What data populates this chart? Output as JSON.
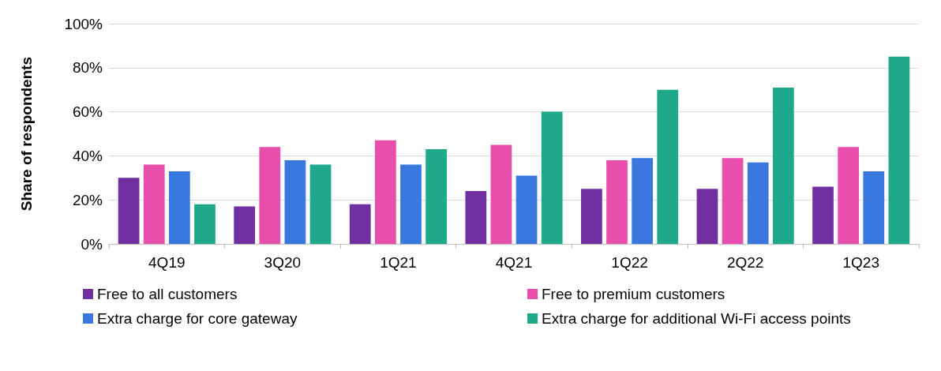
{
  "chart_data": {
    "type": "bar",
    "ylabel": "Share of respondents",
    "categories": [
      "4Q19",
      "3Q20",
      "1Q21",
      "4Q21",
      "1Q22",
      "2Q22",
      "1Q23"
    ],
    "series": [
      {
        "name": "Free to all customers",
        "color": "#7030a0",
        "values": [
          30,
          17,
          18,
          24,
          25,
          25,
          26
        ]
      },
      {
        "name": "Free to premium customers",
        "color": "#e84fad",
        "values": [
          36,
          44,
          47,
          45,
          38,
          39,
          44
        ]
      },
      {
        "name": "Extra charge for core gateway",
        "color": "#3a78e0",
        "values": [
          33,
          38,
          36,
          31,
          39,
          37,
          33
        ]
      },
      {
        "name": "Extra charge for additional Wi-Fi access points",
        "color": "#1fa98a",
        "values": [
          18,
          36,
          43,
          60,
          70,
          71,
          85
        ]
      }
    ],
    "ylim": [
      0,
      100
    ],
    "yticks": [
      {
        "value": 0,
        "label": "0%"
      },
      {
        "value": 20,
        "label": "20%"
      },
      {
        "value": 40,
        "label": "40%"
      },
      {
        "value": 60,
        "label": "60%"
      },
      {
        "value": 80,
        "label": "80%"
      },
      {
        "value": 100,
        "label": "100%"
      }
    ],
    "grid": "y",
    "legend": "bottom"
  }
}
